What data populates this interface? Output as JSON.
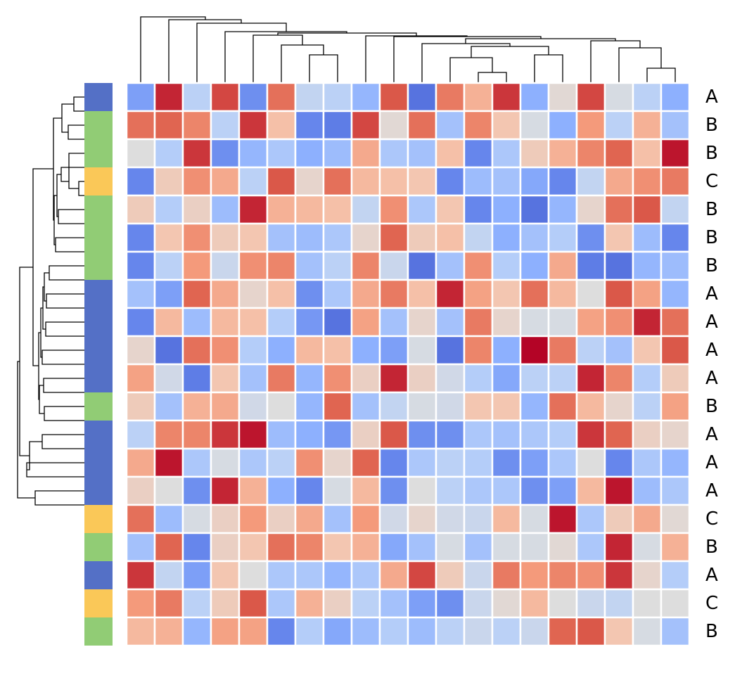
{
  "chart_data": {
    "type": "heatmap",
    "title": "",
    "xlabel": "",
    "ylabel": "",
    "colormap": "coolwarm",
    "vlim": [
      -2.2,
      2.2
    ],
    "linecolor": "#ffffff",
    "row_labels": [
      "A",
      "B",
      "B",
      "C",
      "B",
      "B",
      "B",
      "A",
      "A",
      "A",
      "A",
      "B",
      "A",
      "A",
      "A",
      "C",
      "B",
      "A",
      "C",
      "B"
    ],
    "group_colors": {
      "A": "#5470c6",
      "B": "#91cc75",
      "C": "#fac858"
    },
    "values": [
      [
        -1.3,
        2.0,
        -0.5,
        1.8,
        -1.5,
        1.5,
        -0.4,
        -0.5,
        -1.0,
        1.7,
        -1.8,
        1.4,
        0.8,
        1.9,
        -1.1,
        0.1,
        1.8,
        -0.1,
        -0.5,
        -1.1
      ],
      [
        1.5,
        1.6,
        1.3,
        -0.5,
        1.9,
        0.6,
        -1.6,
        -1.7,
        1.8,
        0.1,
        1.5,
        -0.8,
        1.3,
        0.5,
        -0.1,
        -1.1,
        1.1,
        -0.5,
        0.8,
        -0.8
      ],
      [
        0.0,
        -0.6,
        1.9,
        -1.5,
        -1.0,
        -0.7,
        -1.1,
        -0.9,
        0.9,
        -0.7,
        -0.8,
        0.6,
        -1.6,
        -0.7,
        0.4,
        0.8,
        1.3,
        1.6,
        0.6,
        2.1
      ],
      [
        -1.6,
        0.4,
        1.2,
        0.9,
        -0.5,
        1.7,
        0.2,
        1.5,
        0.7,
        0.6,
        0.5,
        -1.6,
        -0.9,
        -0.8,
        -1.2,
        -1.6,
        -0.4,
        0.9,
        1.2,
        1.4
      ],
      [
        0.4,
        -0.6,
        0.3,
        -0.9,
        2.0,
        0.8,
        0.7,
        0.6,
        -0.4,
        1.2,
        -0.7,
        0.5,
        -1.6,
        -1.1,
        -1.8,
        -1.0,
        0.2,
        1.5,
        1.7,
        -0.4
      ],
      [
        -1.6,
        0.5,
        1.2,
        0.4,
        0.5,
        -0.8,
        -0.9,
        -0.7,
        0.2,
        1.6,
        0.4,
        0.6,
        -0.4,
        -1.1,
        -0.8,
        -0.6,
        -1.5,
        0.5,
        -0.9,
        -1.6
      ],
      [
        -1.6,
        -0.5,
        1.1,
        -0.3,
        1.2,
        1.3,
        -0.8,
        -0.5,
        1.3,
        -0.3,
        -1.8,
        -0.8,
        1.2,
        -0.6,
        -1.1,
        0.9,
        -1.7,
        -1.8,
        -1.0,
        -0.9
      ],
      [
        -0.8,
        -1.3,
        1.6,
        0.9,
        0.2,
        0.6,
        -1.5,
        -0.7,
        0.9,
        1.4,
        0.6,
        2.0,
        1.0,
        0.5,
        1.5,
        0.7,
        0.0,
        1.7,
        1.0,
        -1.0
      ],
      [
        -1.6,
        0.7,
        -0.9,
        0.7,
        0.6,
        -0.6,
        -1.4,
        -1.8,
        1.0,
        -0.8,
        0.2,
        -0.8,
        1.4,
        0.2,
        -0.1,
        -0.1,
        1.0,
        1.2,
        2.0,
        1.5
      ],
      [
        0.2,
        -1.8,
        1.5,
        1.2,
        -0.6,
        -1.1,
        0.7,
        0.6,
        -1.1,
        -1.3,
        -0.1,
        -1.8,
        1.3,
        -1.1,
        2.2,
        1.4,
        -0.5,
        -0.8,
        0.5,
        1.7
      ],
      [
        1.0,
        -0.2,
        -1.7,
        0.5,
        -0.8,
        1.4,
        -1.0,
        1.2,
        0.3,
        2.0,
        0.3,
        -0.2,
        -0.6,
        -1.2,
        -0.5,
        -0.5,
        2.0,
        1.3,
        -0.6,
        0.4
      ],
      [
        0.4,
        -0.8,
        0.8,
        0.9,
        -0.2,
        0.0,
        -1.0,
        1.6,
        -0.8,
        -0.4,
        -0.1,
        -0.2,
        0.5,
        0.5,
        -1.0,
        1.5,
        0.7,
        0.2,
        -0.5,
        1.0
      ],
      [
        -0.5,
        1.3,
        1.3,
        1.9,
        2.1,
        -0.9,
        -1.1,
        -1.4,
        0.3,
        1.7,
        -1.5,
        -1.5,
        -0.7,
        -0.8,
        -0.7,
        -0.6,
        1.9,
        1.6,
        0.3,
        0.2
      ],
      [
        0.9,
        2.1,
        -0.7,
        -0.1,
        -0.7,
        -0.5,
        1.2,
        0.2,
        1.6,
        -1.6,
        -0.7,
        -0.5,
        -0.6,
        -1.5,
        -1.3,
        -0.7,
        0.0,
        -1.6,
        -0.7,
        -1.0
      ],
      [
        0.3,
        0.0,
        -1.5,
        2.0,
        0.8,
        -1.1,
        -1.6,
        -0.1,
        0.7,
        -1.5,
        0.0,
        -0.5,
        -0.7,
        -0.7,
        -1.5,
        -1.3,
        0.7,
        2.1,
        -0.9,
        -0.7
      ],
      [
        1.5,
        -0.9,
        -0.1,
        0.3,
        1.1,
        0.3,
        0.9,
        -0.8,
        1.1,
        -0.2,
        0.2,
        -0.2,
        -0.3,
        0.7,
        -0.1,
        2.1,
        -0.7,
        0.4,
        0.9,
        0.1
      ],
      [
        -0.8,
        1.6,
        -1.6,
        0.3,
        0.5,
        1.5,
        1.3,
        0.5,
        0.8,
        -1.2,
        -0.8,
        -0.1,
        -0.8,
        -0.1,
        -0.1,
        0.1,
        -0.7,
        2.0,
        -0.1,
        0.8
      ],
      [
        1.9,
        -0.4,
        -1.3,
        0.5,
        0.0,
        -0.7,
        -0.7,
        -1.0,
        -0.7,
        0.9,
        1.8,
        0.4,
        -0.3,
        1.4,
        1.1,
        1.3,
        1.2,
        1.9,
        0.2,
        -0.6
      ],
      [
        1.1,
        1.4,
        -0.5,
        0.4,
        1.7,
        -0.7,
        0.8,
        0.3,
        -0.5,
        -0.8,
        -1.3,
        -1.5,
        -0.3,
        0.1,
        0.7,
        0.0,
        -0.3,
        -0.4,
        0.0,
        0.0
      ],
      [
        0.7,
        0.8,
        -1.0,
        1.0,
        1.0,
        -1.6,
        -0.6,
        -1.2,
        -0.9,
        -0.6,
        -0.9,
        -0.5,
        -0.3,
        -0.5,
        -0.3,
        1.6,
        1.7,
        0.5,
        -0.1,
        -0.8
      ]
    ]
  }
}
